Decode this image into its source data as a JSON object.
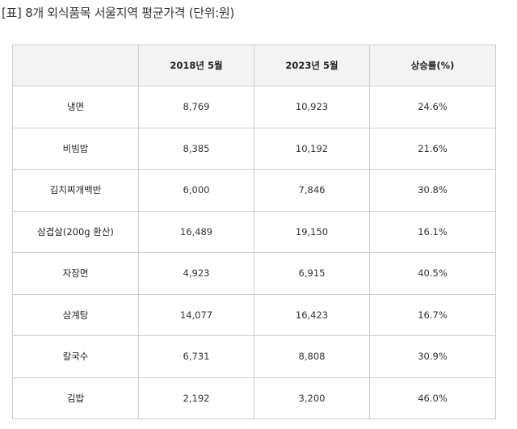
{
  "caption": "[표] 8개 외식품목 서울지역 평균가격 (단위:원)",
  "table": {
    "headers": [
      "",
      "2018년 5월",
      "2023년 5월",
      "상승률(%)"
    ],
    "rows": [
      [
        "냉면",
        "8,769",
        "10,923",
        "24.6%"
      ],
      [
        "비빔밥",
        "8,385",
        "10,192",
        "21.6%"
      ],
      [
        "김치찌개백반",
        "6,000",
        "7,846",
        "30.8%"
      ],
      [
        "삼겹살(200g 환산)",
        "16,489",
        "19,150",
        "16.1%"
      ],
      [
        "자장면",
        "4,923",
        "6,915",
        "40.5%"
      ],
      [
        "삼계탕",
        "14,077",
        "16,423",
        "16.7%"
      ],
      [
        "칼국수",
        "6,731",
        "8,808",
        "30.9%"
      ],
      [
        "김밥",
        "2,192",
        "3,200",
        "46.0%"
      ]
    ]
  }
}
